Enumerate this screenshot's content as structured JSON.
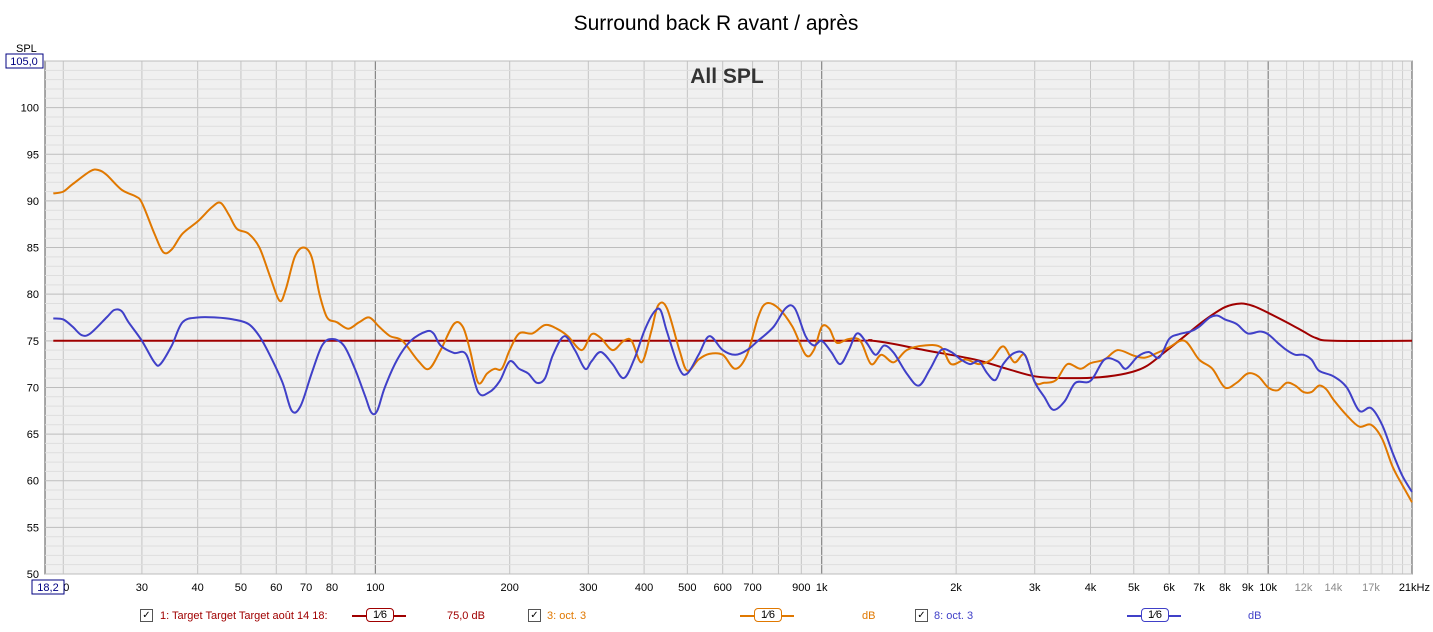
{
  "title": "Surround back R avant / après",
  "chart_data": {
    "type": "line",
    "title": "Surround back R avant / après",
    "inner_title": "All SPL",
    "ylabel": "SPL",
    "x_scale": "log",
    "xlim": [
      18.2,
      21000
    ],
    "ylim": [
      50,
      105
    ],
    "y_top_label": "105,0",
    "x_left_label": "18,2",
    "y_ticks": [
      50,
      55,
      60,
      65,
      70,
      75,
      80,
      85,
      90,
      95,
      100
    ],
    "x_ticks": [
      {
        "v": 20,
        "label": "20"
      },
      {
        "v": 30,
        "label": "30"
      },
      {
        "v": 40,
        "label": "40"
      },
      {
        "v": 50,
        "label": "50"
      },
      {
        "v": 60,
        "label": "60"
      },
      {
        "v": 70,
        "label": "70"
      },
      {
        "v": 80,
        "label": "80"
      },
      {
        "v": 100,
        "label": "100"
      },
      {
        "v": 200,
        "label": "200"
      },
      {
        "v": 300,
        "label": "300"
      },
      {
        "v": 400,
        "label": "400"
      },
      {
        "v": 500,
        "label": "500"
      },
      {
        "v": 600,
        "label": "600"
      },
      {
        "v": 700,
        "label": "700"
      },
      {
        "v": 900,
        "label": "900"
      },
      {
        "v": 1000,
        "label": "1k"
      },
      {
        "v": 2000,
        "label": "2k"
      },
      {
        "v": 3000,
        "label": "3k"
      },
      {
        "v": 4000,
        "label": "4k"
      },
      {
        "v": 5000,
        "label": "5k"
      },
      {
        "v": 6000,
        "label": "6k"
      },
      {
        "v": 7000,
        "label": "7k"
      },
      {
        "v": 8000,
        "label": "8k"
      },
      {
        "v": 9000,
        "label": "9k"
      },
      {
        "v": 10000,
        "label": "10k"
      },
      {
        "v": 12000,
        "label": "12k",
        "grey": true
      },
      {
        "v": 14000,
        "label": "14k",
        "grey": true
      },
      {
        "v": 17000,
        "label": "17k",
        "grey": true
      },
      {
        "v": 21000,
        "label": "21kHz"
      }
    ],
    "grid": true,
    "series": [
      {
        "name": "1: Target Target Target août 14 18:",
        "color": "#a00000",
        "points": [
          [
            19,
            75
          ],
          [
            100,
            75
          ],
          [
            1000,
            75
          ],
          [
            1300,
            75
          ],
          [
            1700,
            74
          ],
          [
            2200,
            73
          ],
          [
            2600,
            72
          ],
          [
            3000,
            71.2
          ],
          [
            3500,
            71
          ],
          [
            4200,
            71.1
          ],
          [
            4800,
            71.5
          ],
          [
            5300,
            72.2
          ],
          [
            5800,
            73.6
          ],
          [
            6500,
            75.5
          ],
          [
            7200,
            77.2
          ],
          [
            8000,
            78.6
          ],
          [
            8700,
            79
          ],
          [
            9300,
            78.7
          ],
          [
            10000,
            78
          ],
          [
            11000,
            77
          ],
          [
            12000,
            76
          ],
          [
            12800,
            75.3
          ],
          [
            14000,
            75
          ],
          [
            21000,
            75
          ]
        ]
      },
      {
        "name": "3: oct. 3",
        "color": "#e07800",
        "points": [
          [
            19,
            90.8
          ],
          [
            20,
            91
          ],
          [
            21,
            91.8
          ],
          [
            23,
            93.2
          ],
          [
            24,
            93.3
          ],
          [
            25,
            92.8
          ],
          [
            27,
            91.2
          ],
          [
            29,
            90.5
          ],
          [
            30,
            89.8
          ],
          [
            32,
            86.5
          ],
          [
            33.5,
            84.5
          ],
          [
            35,
            84.8
          ],
          [
            37,
            86.5
          ],
          [
            40,
            87.8
          ],
          [
            43,
            89.3
          ],
          [
            45,
            89.8
          ],
          [
            47,
            88.5
          ],
          [
            49,
            87
          ],
          [
            52,
            86.5
          ],
          [
            55,
            85
          ],
          [
            58,
            82
          ],
          [
            61,
            79.3
          ],
          [
            63,
            80.5
          ],
          [
            66,
            84
          ],
          [
            69,
            85
          ],
          [
            72,
            84
          ],
          [
            75,
            80
          ],
          [
            78,
            77.5
          ],
          [
            82,
            77
          ],
          [
            87,
            76.3
          ],
          [
            92,
            77
          ],
          [
            97,
            77.5
          ],
          [
            102,
            76.5
          ],
          [
            108,
            75.5
          ],
          [
            115,
            75
          ],
          [
            125,
            72.8
          ],
          [
            132,
            72
          ],
          [
            140,
            74
          ],
          [
            150,
            76.8
          ],
          [
            157,
            76.5
          ],
          [
            163,
            74
          ],
          [
            170,
            70.5
          ],
          [
            178,
            71.5
          ],
          [
            185,
            72
          ],
          [
            192,
            72
          ],
          [
            200,
            74
          ],
          [
            210,
            75.8
          ],
          [
            225,
            75.8
          ],
          [
            240,
            76.7
          ],
          [
            255,
            76.3
          ],
          [
            270,
            75.5
          ],
          [
            290,
            74
          ],
          [
            305,
            75.7
          ],
          [
            320,
            75.3
          ],
          [
            340,
            74
          ],
          [
            360,
            75
          ],
          [
            375,
            75
          ],
          [
            395,
            72.7
          ],
          [
            415,
            76
          ],
          [
            430,
            78.8
          ],
          [
            450,
            78.5
          ],
          [
            480,
            74
          ],
          [
            500,
            71.8
          ],
          [
            530,
            73
          ],
          [
            560,
            73.6
          ],
          [
            600,
            73.5
          ],
          [
            640,
            72
          ],
          [
            680,
            73.5
          ],
          [
            720,
            77.5
          ],
          [
            750,
            79
          ],
          [
            800,
            78.5
          ],
          [
            860,
            76.5
          ],
          [
            920,
            73.5
          ],
          [
            960,
            74
          ],
          [
            1000,
            76.5
          ],
          [
            1040,
            76.3
          ],
          [
            1080,
            74.8
          ],
          [
            1150,
            75.2
          ],
          [
            1220,
            75
          ],
          [
            1290,
            72.5
          ],
          [
            1360,
            73.5
          ],
          [
            1450,
            72.7
          ],
          [
            1550,
            74
          ],
          [
            1700,
            74.5
          ],
          [
            1850,
            74.3
          ],
          [
            1950,
            72.5
          ],
          [
            2100,
            73
          ],
          [
            2250,
            72.5
          ],
          [
            2400,
            73
          ],
          [
            2550,
            74.4
          ],
          [
            2700,
            72.7
          ],
          [
            2850,
            73.5
          ],
          [
            3000,
            70.6
          ],
          [
            3150,
            70.5
          ],
          [
            3350,
            70.8
          ],
          [
            3550,
            72.5
          ],
          [
            3800,
            72
          ],
          [
            4000,
            72.6
          ],
          [
            4300,
            73
          ],
          [
            4600,
            74
          ],
          [
            5000,
            73.4
          ],
          [
            5300,
            73.2
          ],
          [
            5700,
            73.8
          ],
          [
            6000,
            74.3
          ],
          [
            6500,
            75
          ],
          [
            7000,
            73
          ],
          [
            7500,
            72
          ],
          [
            8000,
            70
          ],
          [
            8500,
            70.5
          ],
          [
            9000,
            71.5
          ],
          [
            9500,
            71.2
          ],
          [
            10000,
            70
          ],
          [
            10500,
            69.7
          ],
          [
            11000,
            70.5
          ],
          [
            11500,
            70.2
          ],
          [
            12000,
            69.5
          ],
          [
            12500,
            69.5
          ],
          [
            13000,
            70.2
          ],
          [
            13500,
            69.8
          ],
          [
            14000,
            68.7
          ],
          [
            15000,
            67
          ],
          [
            16000,
            65.8
          ],
          [
            17000,
            66
          ],
          [
            18000,
            64.5
          ],
          [
            19000,
            61.5
          ],
          [
            20000,
            59.5
          ],
          [
            21000,
            57.7
          ]
        ]
      },
      {
        "name": "8: oct. 3",
        "color": "#4040c8",
        "points": [
          [
            19,
            77.4
          ],
          [
            20,
            77.3
          ],
          [
            21,
            76.5
          ],
          [
            22,
            75.6
          ],
          [
            23,
            75.8
          ],
          [
            25,
            77.5
          ],
          [
            26,
            78.3
          ],
          [
            27,
            78.2
          ],
          [
            28,
            77
          ],
          [
            30,
            75
          ],
          [
            32,
            72.7
          ],
          [
            33,
            72.5
          ],
          [
            35,
            74.5
          ],
          [
            37,
            77
          ],
          [
            40,
            77.5
          ],
          [
            44,
            77.5
          ],
          [
            48,
            77.3
          ],
          [
            52,
            76.8
          ],
          [
            55,
            75.5
          ],
          [
            58,
            73.5
          ],
          [
            62,
            70.5
          ],
          [
            65,
            67.5
          ],
          [
            68,
            68
          ],
          [
            72,
            71.5
          ],
          [
            76,
            74.5
          ],
          [
            80,
            75.2
          ],
          [
            85,
            74.5
          ],
          [
            90,
            72
          ],
          [
            95,
            69
          ],
          [
            98,
            67.3
          ],
          [
            101,
            67.5
          ],
          [
            105,
            70
          ],
          [
            112,
            73
          ],
          [
            120,
            75
          ],
          [
            130,
            76
          ],
          [
            135,
            75.8
          ],
          [
            140,
            74.5
          ],
          [
            150,
            73.7
          ],
          [
            160,
            73.5
          ],
          [
            170,
            69.5
          ],
          [
            180,
            69.5
          ],
          [
            190,
            70.7
          ],
          [
            200,
            72.8
          ],
          [
            210,
            72
          ],
          [
            220,
            71.5
          ],
          [
            230,
            70.5
          ],
          [
            240,
            71
          ],
          [
            250,
            73.5
          ],
          [
            265,
            75.5
          ],
          [
            280,
            74
          ],
          [
            295,
            72
          ],
          [
            305,
            72.8
          ],
          [
            320,
            73.8
          ],
          [
            340,
            72.5
          ],
          [
            360,
            71
          ],
          [
            380,
            73
          ],
          [
            400,
            76
          ],
          [
            420,
            78
          ],
          [
            435,
            78.3
          ],
          [
            450,
            76
          ],
          [
            480,
            72
          ],
          [
            500,
            71.5
          ],
          [
            530,
            73.5
          ],
          [
            560,
            75.5
          ],
          [
            600,
            74
          ],
          [
            640,
            73.5
          ],
          [
            680,
            74
          ],
          [
            720,
            75
          ],
          [
            780,
            76.5
          ],
          [
            830,
            78.5
          ],
          [
            870,
            78.5
          ],
          [
            920,
            75.5
          ],
          [
            960,
            74.5
          ],
          [
            1000,
            75
          ],
          [
            1050,
            73.8
          ],
          [
            1100,
            72.5
          ],
          [
            1150,
            74
          ],
          [
            1200,
            75.8
          ],
          [
            1260,
            74.8
          ],
          [
            1320,
            73.5
          ],
          [
            1380,
            74.5
          ],
          [
            1450,
            73.7
          ],
          [
            1550,
            71.5
          ],
          [
            1650,
            70.2
          ],
          [
            1750,
            72
          ],
          [
            1850,
            74
          ],
          [
            1950,
            73.8
          ],
          [
            2050,
            73
          ],
          [
            2150,
            72.5
          ],
          [
            2250,
            72.8
          ],
          [
            2350,
            71.5
          ],
          [
            2450,
            70.8
          ],
          [
            2550,
            72.5
          ],
          [
            2700,
            73.7
          ],
          [
            2850,
            73.5
          ],
          [
            3000,
            70.6
          ],
          [
            3150,
            69
          ],
          [
            3300,
            67.6
          ],
          [
            3500,
            68.5
          ],
          [
            3700,
            70.5
          ],
          [
            4000,
            70.7
          ],
          [
            4300,
            73
          ],
          [
            4600,
            72.8
          ],
          [
            4800,
            72
          ],
          [
            5100,
            73.3
          ],
          [
            5400,
            73.8
          ],
          [
            5700,
            73.2
          ],
          [
            6000,
            75.2
          ],
          [
            6300,
            75.7
          ],
          [
            6700,
            76
          ],
          [
            7000,
            76.5
          ],
          [
            7400,
            77.5
          ],
          [
            7700,
            77.7
          ],
          [
            8000,
            77.3
          ],
          [
            8500,
            76.8
          ],
          [
            9000,
            75.8
          ],
          [
            9600,
            76
          ],
          [
            10000,
            75.7
          ],
          [
            10500,
            74.8
          ],
          [
            11000,
            74
          ],
          [
            11500,
            73.5
          ],
          [
            12000,
            73.5
          ],
          [
            12500,
            73
          ],
          [
            13000,
            71.8
          ],
          [
            14000,
            71.2
          ],
          [
            15000,
            70
          ],
          [
            16000,
            67.5
          ],
          [
            17000,
            67.8
          ],
          [
            18000,
            66
          ],
          [
            19000,
            63
          ],
          [
            20000,
            60.5
          ],
          [
            21000,
            58.8
          ]
        ]
      }
    ]
  },
  "legend": {
    "items": [
      {
        "label": "1: Target Target Target août 14 18:",
        "smoothing": "1⁄6",
        "value": "75,0 dB",
        "checked": "✓"
      },
      {
        "label": "3: oct. 3",
        "smoothing": "1⁄6",
        "value": "dB",
        "checked": "✓"
      },
      {
        "label": "8: oct. 3",
        "smoothing": "1⁄6",
        "value": "dB",
        "checked": "✓"
      }
    ]
  }
}
